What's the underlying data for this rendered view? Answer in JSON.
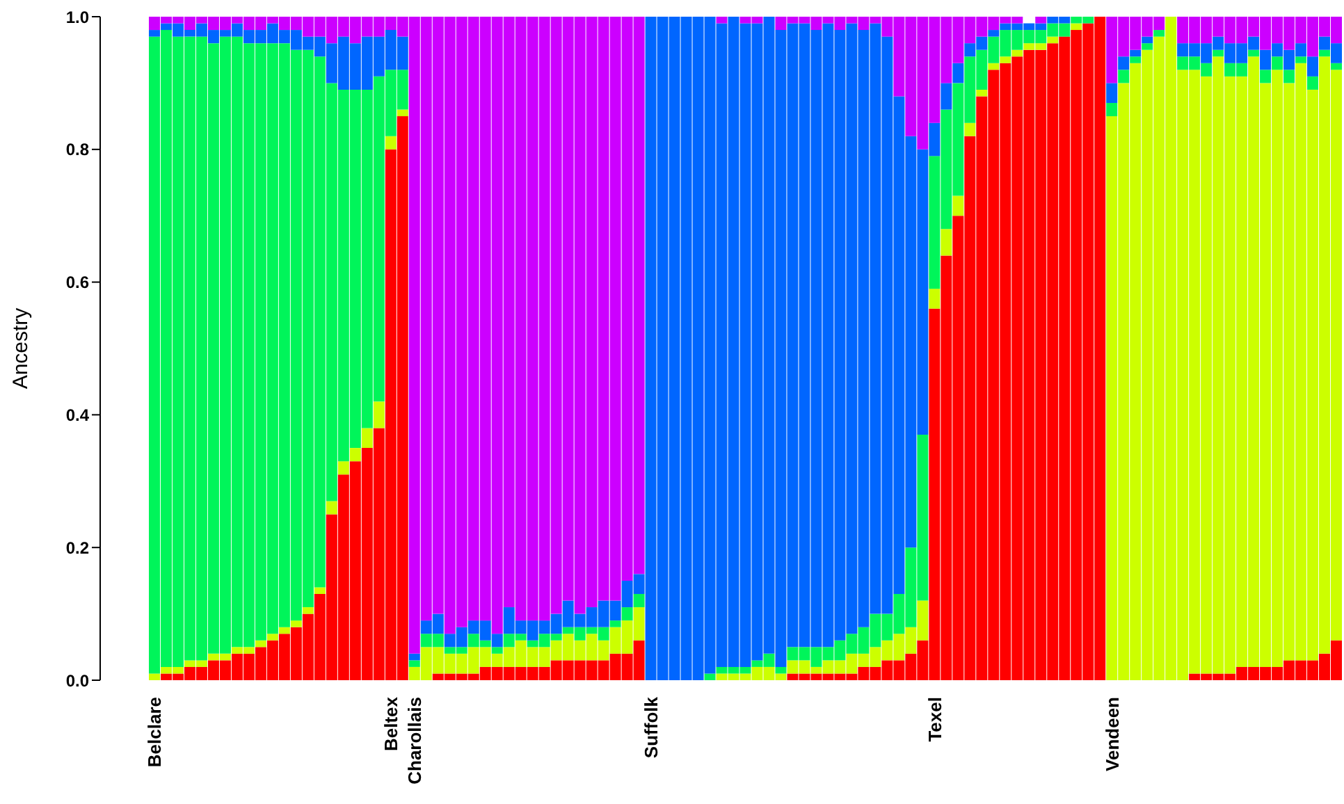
{
  "chart_data": {
    "type": "bar",
    "stacked": true,
    "ylabel": "Ancestry",
    "categories": [
      "Belclare",
      null,
      null,
      null,
      null,
      null,
      null,
      null,
      null,
      null,
      null,
      null,
      null,
      null,
      null,
      null,
      null,
      null,
      null,
      null,
      "Beltex",
      null,
      "Charollais",
      null,
      null,
      null,
      null,
      null,
      null,
      null,
      null,
      null,
      null,
      null,
      null,
      null,
      null,
      null,
      null,
      null,
      null,
      null,
      "Suffolk",
      null,
      null,
      null,
      null,
      null,
      null,
      null,
      null,
      null,
      null,
      null,
      null,
      null,
      null,
      null,
      null,
      null,
      null,
      null,
      null,
      null,
      null,
      null,
      "Texel",
      null,
      null,
      null,
      null,
      null,
      null,
      null,
      null,
      null,
      null,
      null,
      null,
      null,
      null,
      "Vendeen",
      null,
      null,
      null,
      null,
      null,
      null,
      null,
      null,
      null,
      null,
      null,
      null,
      null,
      null,
      null,
      null,
      null,
      null,
      null
    ],
    "ylim": [
      0,
      1
    ],
    "yticks": [
      {
        "value": 0,
        "label": "0.0"
      },
      0.2,
      0.4,
      0.6,
      0.8,
      {
        "value": 1,
        "label": "1.0"
      }
    ],
    "series": [
      {
        "color": "#ff0000",
        "values": [
          0,
          0.01,
          0.01,
          0.02,
          0.02,
          0.03,
          0.03,
          0.04,
          0.04,
          0.05,
          0.06,
          0.07,
          0.08,
          0.1,
          0.13,
          0.25,
          0.31,
          0.33,
          0.35,
          0.38,
          0.8,
          0.85,
          0,
          0,
          0.01,
          0.01,
          0.01,
          0.01,
          0.02,
          0.02,
          0.02,
          0.02,
          0.02,
          0.02,
          0.03,
          0.03,
          0.03,
          0.03,
          0.03,
          0.04,
          0.04,
          0.06,
          0,
          0,
          0,
          0,
          0,
          0,
          0,
          0,
          0,
          0,
          0,
          0,
          0.01,
          0.01,
          0.01,
          0.01,
          0.01,
          0.01,
          0.02,
          0.02,
          0.03,
          0.03,
          0.04,
          0.06,
          0.56,
          0.64,
          0.7,
          0.82,
          0.88,
          0.92,
          0.93,
          0.94,
          0.95,
          0.95,
          0.96,
          0.97,
          0.98,
          0.99,
          1.0,
          0,
          0,
          0,
          0,
          0,
          0,
          0,
          0.01,
          0.01,
          0.01,
          0.01,
          0.02,
          0.02,
          0.02,
          0.02,
          0.03,
          0.03,
          0.03,
          0.04,
          0.06
        ]
      },
      {
        "color": "#ccff00",
        "values": [
          0.01,
          0.01,
          0.01,
          0.01,
          0.01,
          0.01,
          0.01,
          0.01,
          0.01,
          0.01,
          0.01,
          0.01,
          0.01,
          0.01,
          0.01,
          0.02,
          0.02,
          0.02,
          0.03,
          0.04,
          0.02,
          0.01,
          0.02,
          0.05,
          0.04,
          0.03,
          0.03,
          0.04,
          0.03,
          0.02,
          0.03,
          0.04,
          0.03,
          0.03,
          0.03,
          0.04,
          0.03,
          0.04,
          0.03,
          0.04,
          0.05,
          0.05,
          0,
          0,
          0,
          0,
          0,
          0,
          0.01,
          0.01,
          0.01,
          0.02,
          0.02,
          0.01,
          0.02,
          0.02,
          0.01,
          0.02,
          0.02,
          0.03,
          0.02,
          0.03,
          0.03,
          0.04,
          0.04,
          0.06,
          0.03,
          0.04,
          0.03,
          0.02,
          0.01,
          0.01,
          0.01,
          0.01,
          0.01,
          0.01,
          0.01,
          0,
          0.01,
          0,
          0,
          0.85,
          0.9,
          0.93,
          0.95,
          0.97,
          1.0,
          0.92,
          0.91,
          0.9,
          0.93,
          0.9,
          0.89,
          0.92,
          0.88,
          0.9,
          0.87,
          0.9,
          0.86,
          0.9,
          0.86
        ]
      },
      {
        "color": "#00f55a",
        "values": [
          0.96,
          0.96,
          0.95,
          0.94,
          0.94,
          0.92,
          0.93,
          0.92,
          0.91,
          0.9,
          0.89,
          0.88,
          0.86,
          0.84,
          0.8,
          0.63,
          0.56,
          0.54,
          0.51,
          0.49,
          0.1,
          0.06,
          0.01,
          0.02,
          0.02,
          0.01,
          0.01,
          0.02,
          0.01,
          0.01,
          0.02,
          0.01,
          0.01,
          0.02,
          0.01,
          0.01,
          0.02,
          0.01,
          0.02,
          0.01,
          0.02,
          0.02,
          0,
          0,
          0,
          0,
          0,
          0.01,
          0.01,
          0.01,
          0.01,
          0.01,
          0.02,
          0.01,
          0.02,
          0.02,
          0.03,
          0.02,
          0.03,
          0.03,
          0.04,
          0.05,
          0.04,
          0.06,
          0.12,
          0.25,
          0.2,
          0.18,
          0.17,
          0.1,
          0.06,
          0.04,
          0.04,
          0.03,
          0.02,
          0.02,
          0.02,
          0.02,
          0.01,
          0.01,
          0,
          0.02,
          0.02,
          0.01,
          0.01,
          0.01,
          0,
          0.02,
          0.02,
          0.02,
          0.01,
          0.02,
          0.02,
          0.01,
          0.02,
          0.02,
          0.02,
          0.01,
          0.02,
          0.01,
          0.01
        ]
      },
      {
        "color": "#0066ff",
        "values": [
          0.01,
          0.01,
          0.02,
          0.01,
          0.02,
          0.02,
          0.01,
          0.02,
          0.02,
          0.02,
          0.03,
          0.02,
          0.03,
          0.02,
          0.03,
          0.06,
          0.08,
          0.07,
          0.08,
          0.06,
          0.06,
          0.05,
          0.01,
          0.02,
          0.03,
          0.02,
          0.03,
          0.02,
          0.03,
          0.02,
          0.04,
          0.02,
          0.03,
          0.02,
          0.03,
          0.04,
          0.02,
          0.03,
          0.04,
          0.03,
          0.04,
          0.03,
          1,
          1,
          1,
          1,
          1,
          0.99,
          0.97,
          0.98,
          0.97,
          0.96,
          0.96,
          0.96,
          0.94,
          0.94,
          0.93,
          0.94,
          0.92,
          0.92,
          0.9,
          0.89,
          0.87,
          0.75,
          0.62,
          0.43,
          0.05,
          0.04,
          0.03,
          0.02,
          0.02,
          0.01,
          0.01,
          0.01,
          0.01,
          0.01,
          0.01,
          0.01,
          0,
          0,
          0,
          0.03,
          0.02,
          0.01,
          0.01,
          0,
          0,
          0.02,
          0.02,
          0.03,
          0.02,
          0.03,
          0.03,
          0.02,
          0.03,
          0.02,
          0.03,
          0.02,
          0.03,
          0.02,
          0.03
        ]
      },
      {
        "color": "#cc00ff",
        "values": [
          0.02,
          0.01,
          0.01,
          0.02,
          0.01,
          0.02,
          0.02,
          0.01,
          0.02,
          0.02,
          0.01,
          0.02,
          0.02,
          0.03,
          0.03,
          0.04,
          0.03,
          0.04,
          0.03,
          0.03,
          0.02,
          0.03,
          0.96,
          0.91,
          0.9,
          0.93,
          0.92,
          0.91,
          0.91,
          0.93,
          0.89,
          0.91,
          0.91,
          0.91,
          0.9,
          0.88,
          0.9,
          0.89,
          0.88,
          0.88,
          0.85,
          0.84,
          0,
          0,
          0,
          0,
          0,
          0,
          0.01,
          0,
          0.01,
          0.01,
          0,
          0.02,
          0.01,
          0.01,
          0.02,
          0.01,
          0.02,
          0.01,
          0.02,
          0.01,
          0.03,
          0.12,
          0.18,
          0.2,
          0.16,
          0.1,
          0.07,
          0.04,
          0.03,
          0.02,
          0.01,
          0.01,
          0,
          0.01,
          0,
          0,
          0,
          0,
          0,
          0.1,
          0.06,
          0.05,
          0.03,
          0.02,
          0,
          0.04,
          0.04,
          0.04,
          0.03,
          0.04,
          0.04,
          0.03,
          0.05,
          0.04,
          0.05,
          0.04,
          0.06,
          0.03,
          0.04
        ]
      }
    ]
  }
}
